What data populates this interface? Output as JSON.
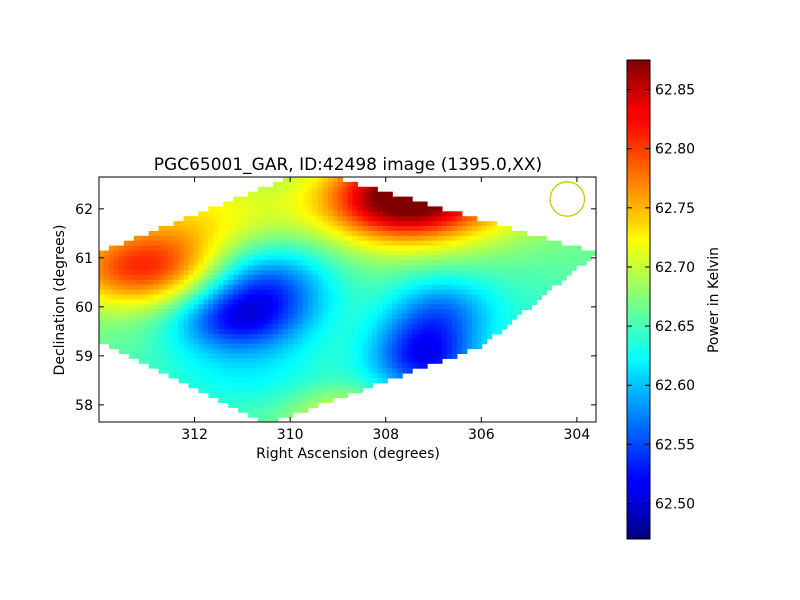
{
  "chart_data": {
    "type": "heatmap",
    "title": "PGC65001_GAR, ID:42498 image (1395.0,XX)",
    "xlabel": "Right Ascension (degrees)",
    "ylabel": "Declination (degrees)",
    "x_ticks": [
      "312",
      "310",
      "308",
      "306",
      "304"
    ],
    "y_ticks": [
      "58",
      "59",
      "60",
      "61",
      "62"
    ],
    "x_tick_values": [
      312,
      310,
      308,
      306,
      304
    ],
    "y_tick_values": [
      58,
      59,
      60,
      61,
      62
    ],
    "xlim": [
      314.0,
      303.6
    ],
    "ylim": [
      57.65,
      62.65
    ],
    "colorbar": {
      "label": "Power in Kelvin",
      "range": [
        62.47,
        62.875
      ],
      "ticks": [
        "62.50",
        "62.55",
        "62.60",
        "62.65",
        "62.70",
        "62.75",
        "62.80",
        "62.85"
      ],
      "tick_values": [
        62.5,
        62.55,
        62.6,
        62.65,
        62.7,
        62.75,
        62.8,
        62.85
      ],
      "colormap": "jet"
    },
    "coverage_region_corners": [
      [
        309.6,
        62.8
      ],
      [
        303.6,
        61.1
      ],
      [
        306.0,
        59.2
      ],
      [
        310.5,
        57.6
      ],
      [
        314.0,
        59.3
      ],
      [
        314.0,
        61.1
      ]
    ],
    "field": {
      "background": 62.665,
      "components": [
        {
          "ra": 313.1,
          "dec": 60.75,
          "amp": 0.12,
          "sigma_ra": 1.2,
          "sigma_dec": 0.55
        },
        {
          "ra": 311.8,
          "dec": 61.6,
          "amp": 0.07,
          "sigma_ra": 1.6,
          "sigma_dec": 0.8
        },
        {
          "ra": 307.7,
          "dec": 62.2,
          "amp": 0.18,
          "sigma_ra": 1.1,
          "sigma_dec": 0.6
        },
        {
          "ra": 306.5,
          "dec": 62.4,
          "amp": 0.09,
          "sigma_ra": 1.5,
          "sigma_dec": 0.7
        },
        {
          "ra": 310.6,
          "dec": 60.4,
          "amp": -0.14,
          "sigma_ra": 1.0,
          "sigma_dec": 0.7
        },
        {
          "ra": 311.3,
          "dec": 59.7,
          "amp": -0.08,
          "sigma_ra": 0.9,
          "sigma_dec": 0.45
        },
        {
          "ra": 307.2,
          "dec": 59.0,
          "amp": -0.14,
          "sigma_ra": 0.8,
          "sigma_dec": 0.6
        },
        {
          "ra": 306.8,
          "dec": 60.0,
          "amp": -0.07,
          "sigma_ra": 0.8,
          "sigma_dec": 0.5
        },
        {
          "ra": 311.0,
          "dec": 58.6,
          "amp": -0.04,
          "sigma_ra": 1.5,
          "sigma_dec": 0.6
        },
        {
          "ra": 308.8,
          "dec": 57.8,
          "amp": 0.06,
          "sigma_ra": 0.8,
          "sigma_dec": 0.35
        },
        {
          "ra": 304.8,
          "dec": 59.6,
          "amp": -0.02,
          "sigma_ra": 1.0,
          "sigma_dec": 1.0
        }
      ]
    },
    "beam_marker": {
      "ra": 304.2,
      "dec": 62.2,
      "radius_deg": 0.35,
      "color": "#c8c800"
    }
  }
}
